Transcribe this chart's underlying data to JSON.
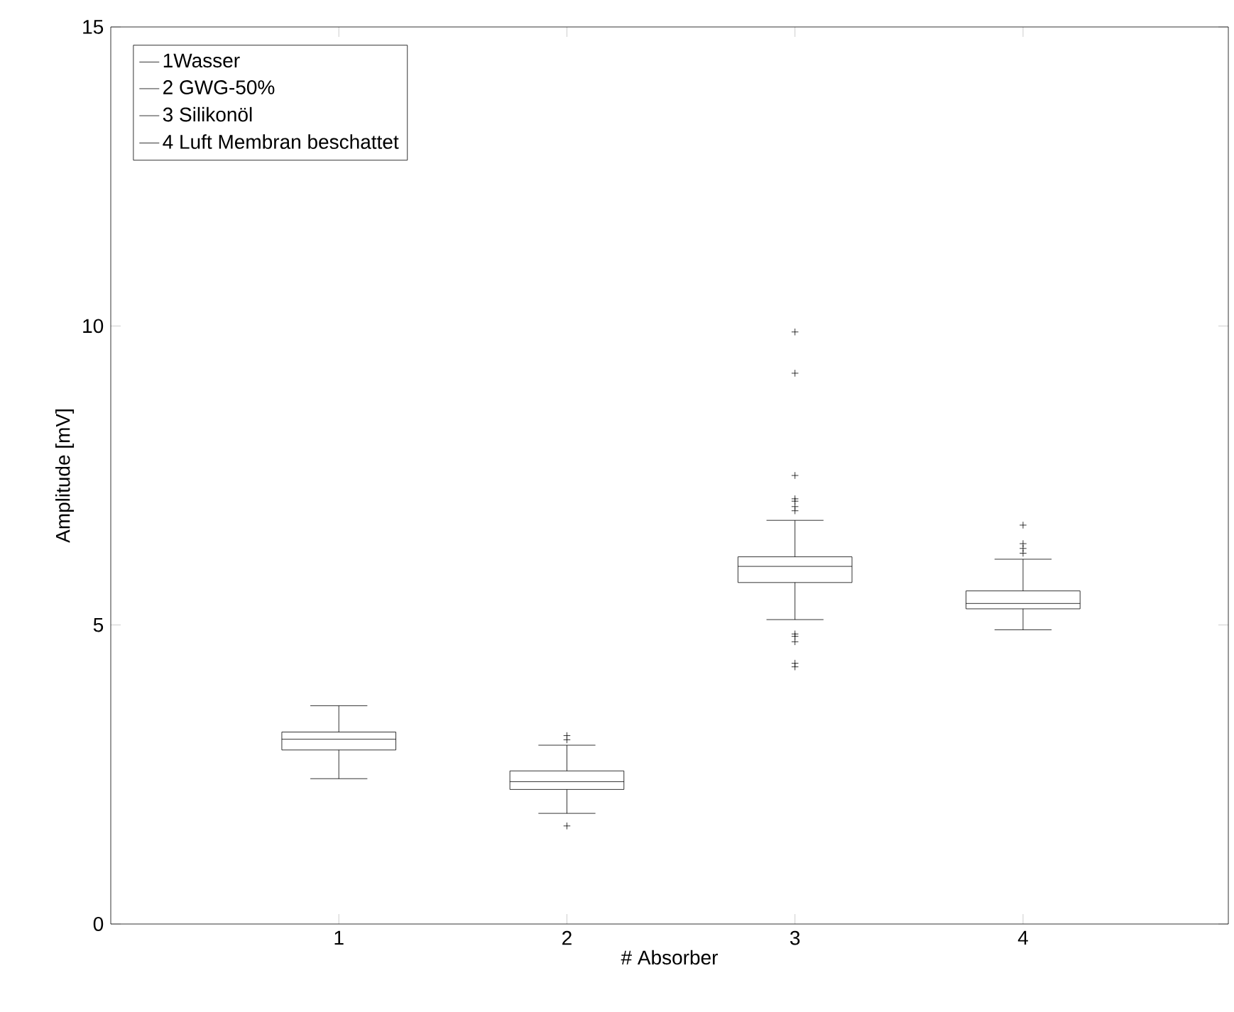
{
  "chart_data": {
    "type": "box",
    "xlabel": "# Absorber",
    "ylabel": "Amplitude [mV]",
    "categories": [
      "1",
      "2",
      "3",
      "4"
    ],
    "ylim": [
      0,
      15
    ],
    "yticks": [
      0,
      5,
      10,
      15
    ],
    "legend": "top left",
    "series": [
      {
        "name": "1Wasser",
        "color": "#000000",
        "boxes": [
          {
            "low": 2.43,
            "q1": 2.91,
            "median": 3.09,
            "q3": 3.21,
            "high": 3.65
          },
          null,
          null,
          null
        ]
      },
      {
        "name": "2 GWG-50%",
        "color": "#000000",
        "boxes": [
          null,
          {
            "low": 1.85,
            "q1": 2.25,
            "median": 2.38,
            "q3": 2.56,
            "high": 2.99,
            "outliers": [
              3.08,
              3.15,
              1.64
            ]
          },
          null,
          null
        ]
      },
      {
        "name": "3 Silikonöl",
        "color": "#000000",
        "boxes": [
          null,
          null,
          {
            "low": 5.09,
            "q1": 5.71,
            "median": 5.98,
            "q3": 6.14,
            "high": 6.75,
            "outliers": [
              9.9,
              9.21,
              7.5,
              7.11,
              7.07,
              6.98,
              6.91,
              4.85,
              4.81,
              4.72,
              4.36,
              4.3
            ]
          },
          null
        ]
      },
      {
        "name": "4 Luft Membran beschattet",
        "color": "#000000",
        "boxes": [
          null,
          null,
          null,
          {
            "low": 4.92,
            "q1": 5.27,
            "median": 5.36,
            "q3": 5.57,
            "high": 6.1,
            "outliers": [
              6.67,
              6.36,
              6.28,
              6.2
            ]
          }
        ]
      }
    ]
  }
}
